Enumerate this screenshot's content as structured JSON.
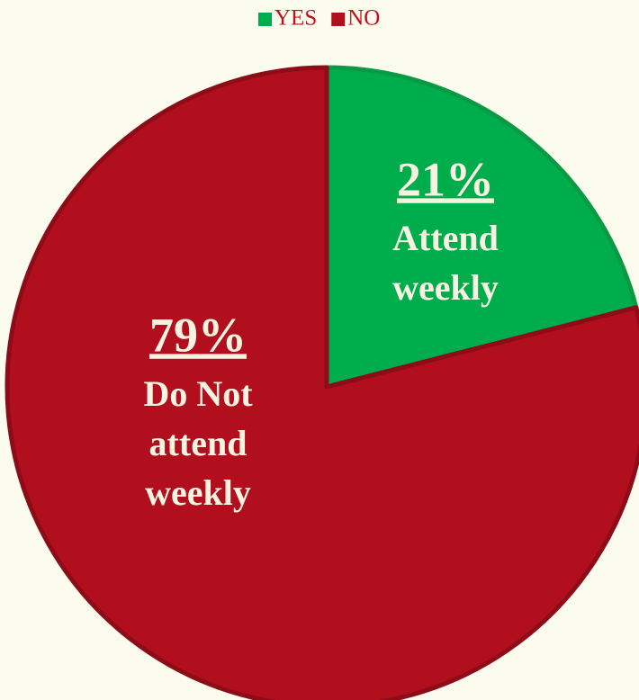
{
  "chart_data": {
    "type": "pie",
    "categories": [
      "YES",
      "NO"
    ],
    "values": [
      21,
      79
    ],
    "value_labels": [
      "21%",
      "79%"
    ],
    "annotations": [
      [
        "Attend",
        "weekly"
      ],
      [
        "Do Not",
        "attend",
        "weekly"
      ]
    ],
    "colors": [
      "#00ad4c",
      "#b10f1e"
    ],
    "legend": "top"
  }
}
